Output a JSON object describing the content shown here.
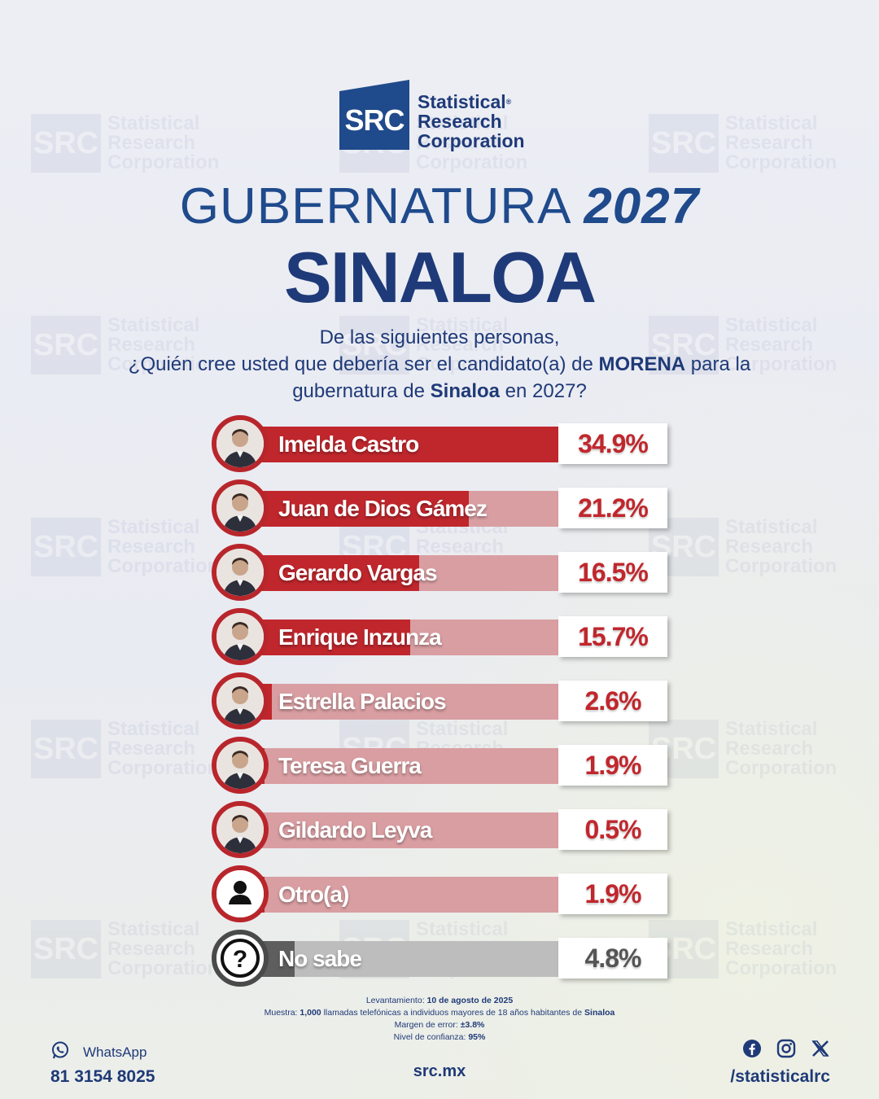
{
  "brand": {
    "abbr": "SRC",
    "name_line1": "Statistical",
    "name_line2": "Research",
    "name_line3": "Corporation",
    "primary_color": "#1f3a78",
    "accent_color": "#c0272d"
  },
  "header": {
    "title": "GUBERNATURA",
    "year": "2027",
    "state": "SINALOA"
  },
  "question": {
    "line1": "De las siguientes personas,",
    "line2_a": "¿Quién cree usted que debería ser el candidato(a) de ",
    "line2_party": "MORENA",
    "line2_b": " para la",
    "line3_a": "gubernatura de ",
    "line3_state": "Sinaloa",
    "line3_b": " en 2027?"
  },
  "chart_data": {
    "type": "bar",
    "orientation": "horizontal",
    "categories": [
      "Imelda Castro",
      "Juan de Dios Gámez",
      "Gerardo Vargas",
      "Enrique Inzunza",
      "Estrella Palacios",
      "Teresa Guerra",
      "Gildardo Leyva",
      "Otro(a)",
      "No sabe"
    ],
    "values": [
      34.9,
      21.2,
      16.5,
      15.7,
      2.6,
      1.9,
      0.5,
      1.9,
      4.8
    ],
    "labels": [
      "34.9%",
      "21.2%",
      "16.5%",
      "15.7%",
      "2.6%",
      "1.9%",
      "0.5%",
      "1.9%",
      "4.8%"
    ],
    "avatars": [
      "person-photo-icon",
      "person-photo-icon",
      "person-photo-icon",
      "person-photo-icon",
      "person-photo-icon",
      "person-photo-icon",
      "person-photo-icon",
      "person-silhouette-icon",
      "question-mark-icon"
    ],
    "xlim": [
      0,
      40
    ],
    "bar_color": "#c0272d",
    "track_color": "#d99ea2",
    "no_sabe_color": "#5e5e5e"
  },
  "footer": {
    "survey_label": "Levantamiento: ",
    "survey_date": "10 de agosto de 2025",
    "sample_label": "Muestra: ",
    "sample_count": "1,000",
    "sample_text": " llamadas telefónicas a individuos mayores de 18 años habitantes de ",
    "sample_state": "Sinaloa",
    "margin_label": "Margen de error: ",
    "margin_value": "±3.8%",
    "confidence_label": "Nivel de confianza: ",
    "confidence_value": "95%",
    "whatsapp_label": "WhatsApp",
    "whatsapp_number": "81 3154 8025",
    "website": "src.mx",
    "social_handle": "/statisticalrc"
  }
}
